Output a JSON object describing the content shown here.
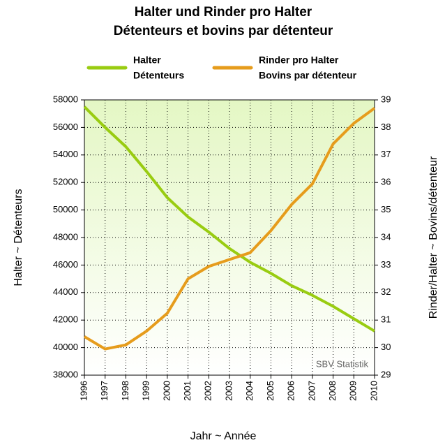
{
  "chart_data": {
    "type": "line",
    "title": "Halter und Rinder pro Halter",
    "subtitle": "Détenteurs et bovins par détenteur",
    "x_label": "Jahr ~ Année",
    "y_label": "Halter ~ Détenteurs",
    "y2_label": "Rinder/Halter ~ Bovins/détenteur",
    "annotation": "SBV Statistik",
    "categories": [
      "1996",
      "1997",
      "1998",
      "1999",
      "2000",
      "2001",
      "2002",
      "2003",
      "2004",
      "2005",
      "2006",
      "2007",
      "2008",
      "2009",
      "2010"
    ],
    "series": [
      {
        "name": "Halter",
        "name2": "Détenteurs",
        "color": "#99cc11",
        "axis": "y",
        "values": [
          57500,
          56000,
          54600,
          52800,
          50900,
          49500,
          48400,
          47200,
          46200,
          45400,
          44500,
          43800,
          43000,
          42100,
          41200
        ]
      },
      {
        "name": "Rinder pro Halter",
        "name2": "Bovins par détenteur",
        "color": "#e69c1c",
        "axis": "y2",
        "values": [
          30.4,
          29.95,
          30.1,
          30.6,
          31.25,
          32.5,
          32.95,
          33.2,
          33.45,
          34.25,
          35.2,
          35.95,
          37.4,
          38.15,
          38.7
        ]
      }
    ],
    "ylim": [
      38000,
      58000
    ],
    "yticks": [
      38000,
      40000,
      42000,
      44000,
      46000,
      48000,
      50000,
      52000,
      54000,
      56000,
      58000
    ],
    "y2lim": [
      29,
      39
    ],
    "y2ticks": [
      29,
      30,
      31,
      32,
      33,
      34,
      35,
      36,
      37,
      38,
      39
    ],
    "grid": true
  }
}
